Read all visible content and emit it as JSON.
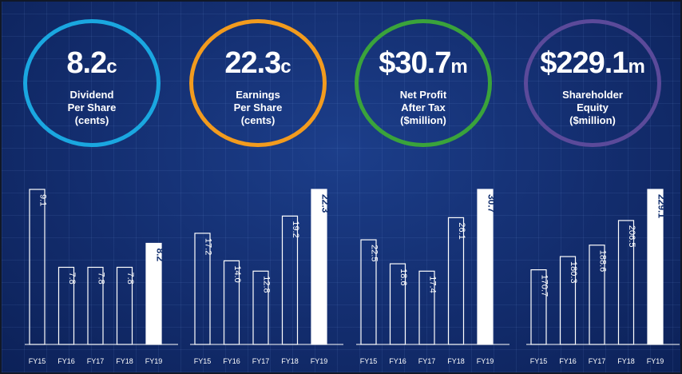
{
  "kpis": [
    {
      "value": "8.2",
      "unit": "c",
      "label_lines": [
        "Dividend",
        "Per Share",
        "(cents)"
      ],
      "ring_color": "#1aa7e0"
    },
    {
      "value": "22.3",
      "unit": "c",
      "label_lines": [
        "Earnings",
        "Per Share",
        "(cents)"
      ],
      "ring_color": "#f29b1e"
    },
    {
      "value": "$30.7",
      "unit": "m",
      "label_lines": [
        "Net Profit",
        "After Tax",
        "($million)"
      ],
      "ring_color": "#3aa33b"
    },
    {
      "value": "$229.1",
      "unit": "m",
      "label_lines": [
        "Shareholder",
        "Equity",
        "($million)"
      ],
      "ring_color": "#5b4a9a"
    }
  ],
  "chart_data": [
    {
      "type": "bar",
      "categories": [
        "FY15",
        "FY16",
        "FY17",
        "FY18",
        "FY19"
      ],
      "values": [
        9.1,
        7.8,
        7.8,
        7.8,
        8.2
      ],
      "labels": [
        "9.1",
        "7.8",
        "7.8",
        "7.8",
        "8.2"
      ],
      "highlight_index": 4
    },
    {
      "type": "bar",
      "categories": [
        "FY15",
        "FY16",
        "FY17",
        "FY18",
        "FY19"
      ],
      "values": [
        17.2,
        14.0,
        12.8,
        19.2,
        22.3
      ],
      "labels": [
        "17.2",
        "14.0",
        "12.8",
        "19.2",
        "22.3"
      ],
      "highlight_index": 4
    },
    {
      "type": "bar",
      "categories": [
        "FY15",
        "FY16",
        "FY17",
        "FY18",
        "FY19"
      ],
      "values": [
        22.5,
        18.6,
        17.4,
        26.1,
        30.7
      ],
      "labels": [
        "22.5",
        "18.6",
        "17.4",
        "26.1",
        "30.7"
      ],
      "highlight_index": 4
    },
    {
      "type": "bar",
      "categories": [
        "FY15",
        "FY16",
        "FY17",
        "FY18",
        "FY19"
      ],
      "values": [
        170.7,
        180.3,
        188.6,
        206.5,
        229.1
      ],
      "labels": [
        "170.7",
        "180.3",
        "188.6",
        "206.5",
        "229.1"
      ],
      "highlight_index": 4
    }
  ],
  "colors": {
    "bar_outline": "#ffffff",
    "bar_highlight_fill": "#ffffff",
    "label_text": "#ffffff",
    "highlight_label_text": "#13306f",
    "axis": "#ffffff"
  }
}
